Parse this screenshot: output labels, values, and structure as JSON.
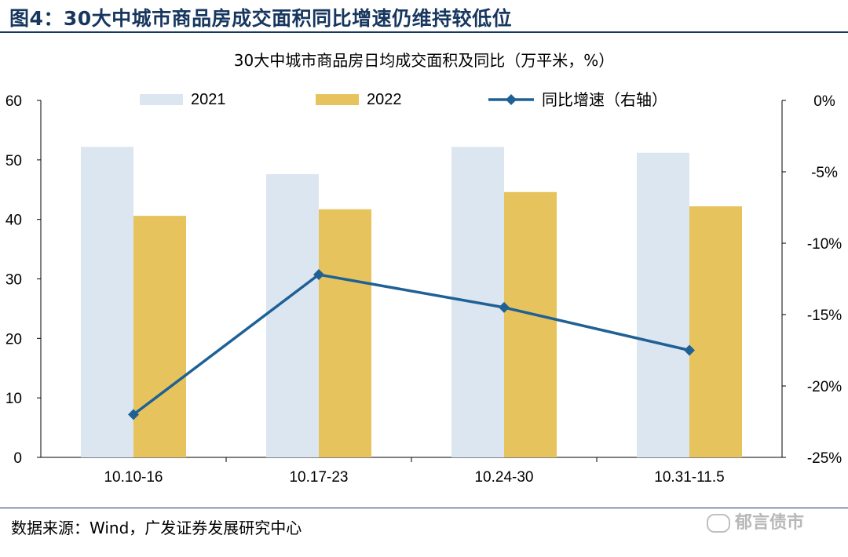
{
  "header": {
    "title": "图4：30大中城市商品房成交面积同比增速仍维持较低位"
  },
  "footer": {
    "source": "数据来源：Wind，广发证券发展研究中心",
    "watermark": "郁言债市"
  },
  "chart_data": {
    "type": "bar+line",
    "title": "30大中城市商品房日均成交面积及同比（万平米，%）",
    "categories": [
      "10.10-16",
      "10.17-23",
      "10.24-30",
      "10.31-11.5"
    ],
    "series": [
      {
        "name": "2021",
        "type": "bar",
        "axis": "left",
        "values": [
          52.2,
          47.6,
          52.2,
          51.2
        ],
        "color": "#dce6f1"
      },
      {
        "name": "2022",
        "type": "bar",
        "axis": "left",
        "values": [
          40.6,
          41.7,
          44.6,
          42.2
        ],
        "color": "#e6c35c"
      },
      {
        "name": "同比增速（右轴）",
        "type": "line",
        "axis": "right",
        "values": [
          -22.0,
          -12.2,
          -14.5,
          -17.5
        ],
        "color": "#1f6195"
      }
    ],
    "left_axis": {
      "min": 0,
      "max": 60,
      "ticks": [
        "0",
        "10",
        "20",
        "30",
        "40",
        "50",
        "60"
      ]
    },
    "right_axis": {
      "min": -25,
      "max": 0,
      "ticks": [
        "-25%",
        "-20%",
        "-15%",
        "-10%",
        "-5%",
        "0%"
      ]
    },
    "legend_position": "top"
  }
}
